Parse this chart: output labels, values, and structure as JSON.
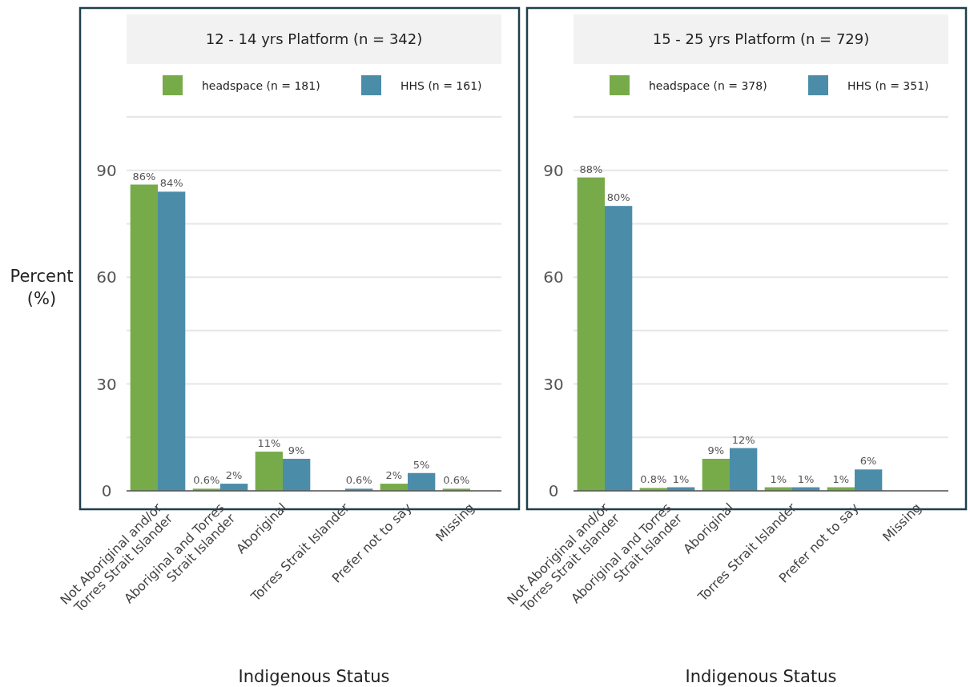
{
  "chart_data": [
    {
      "type": "bar",
      "title": "12 - 14 yrs Platform (n = 342)",
      "xlabel": "Indigenous Status",
      "ylabel": "Percent (%)",
      "categories": [
        "Not Aboriginal and/or Torres Strait Islander",
        "Aboriginal and Torres Strait Islander",
        "Aboriginal",
        "Torres Strait Islander",
        "Prefer not to say",
        "Missing"
      ],
      "series": [
        {
          "name": "headspace (n = 181)",
          "color": "#77ab4a",
          "values": [
            86,
            0.6,
            11,
            null,
            2,
            0.6
          ],
          "value_labels": [
            "86%",
            "0.6%",
            "11%",
            null,
            "2%",
            "0.6%"
          ]
        },
        {
          "name": "HHS (n = 161)",
          "color": "#4b8da9",
          "values": [
            84,
            2,
            9,
            0.6,
            5,
            null
          ],
          "value_labels": [
            "84%",
            "2%",
            "9%",
            "0.6%",
            "5%",
            null
          ]
        }
      ],
      "ylim": [
        0,
        105
      ],
      "yticks": [
        0,
        {
          "value": 15,
          "label": null
        },
        30,
        {
          "value": 45,
          "label": null
        },
        60,
        {
          "value": 75,
          "label": null
        },
        90,
        {
          "value": 105,
          "label": null
        }
      ],
      "grid": "y",
      "legend": "top"
    },
    {
      "type": "bar",
      "title": "15 - 25 yrs Platform (n = 729)",
      "xlabel": "Indigenous Status",
      "categories": [
        "Not Aboriginal and/or Torres Strait Islander",
        "Aboriginal and Torres Strait Islander",
        "Aboriginal",
        "Torres Strait Islander",
        "Prefer not to say",
        "Missing"
      ],
      "series": [
        {
          "name": "headspace (n = 378)",
          "color": "#77ab4a",
          "values": [
            88,
            0.8,
            9,
            1,
            1,
            null
          ],
          "value_labels": [
            "88%",
            "0.8%",
            "9%",
            "1%",
            "1%",
            null
          ]
        },
        {
          "name": "HHS (n = 351)",
          "color": "#4b8da9",
          "values": [
            80,
            1,
            12,
            1,
            6,
            null
          ],
          "value_labels": [
            "80%",
            "1%",
            "12%",
            "1%",
            "6%",
            null
          ]
        }
      ],
      "ylim": [
        0,
        105
      ],
      "yticks": [
        0,
        {
          "value": 15,
          "label": null
        },
        30,
        {
          "value": 45,
          "label": null
        },
        60,
        {
          "value": 75,
          "label": null
        },
        90,
        {
          "value": 105,
          "label": null
        }
      ],
      "grid": "y",
      "legend": "top"
    }
  ]
}
